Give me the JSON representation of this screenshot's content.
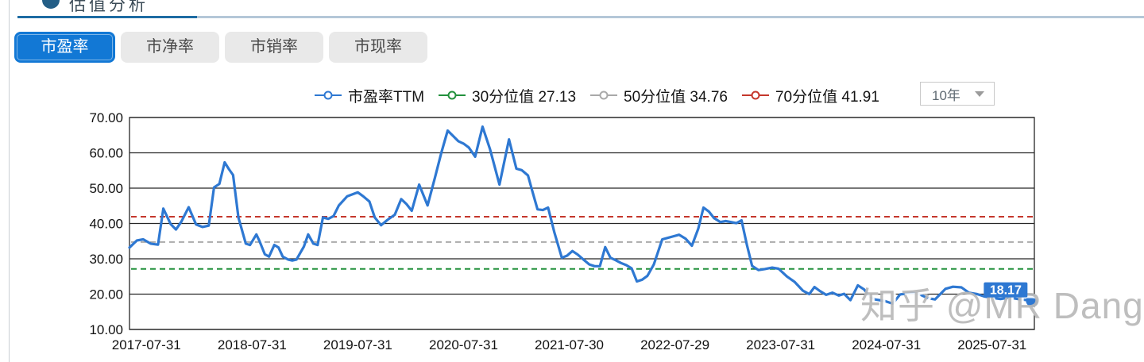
{
  "header": {
    "title": "估值分析"
  },
  "tabs": [
    {
      "label": "市盈率",
      "active": true
    },
    {
      "label": "市净率",
      "active": false
    },
    {
      "label": "市销率",
      "active": false
    },
    {
      "label": "市现率",
      "active": false
    }
  ],
  "legend": [
    {
      "label": "市盈率TTM",
      "color": "#2e78d2"
    },
    {
      "label": "30分位值 27.13",
      "color": "#23913d"
    },
    {
      "label": "50分位值 34.76",
      "color": "#a9a9a9"
    },
    {
      "label": "70分位值 41.91",
      "color": "#c5372c"
    }
  ],
  "period_select": {
    "value": "10年",
    "icon": "caret-down-icon"
  },
  "watermark": {
    "text": "知乎 @MR Dang"
  },
  "chart_data": {
    "type": "line",
    "title": "",
    "xlabel": "",
    "ylabel": "",
    "ylim": [
      10,
      70
    ],
    "y_ticks": [
      70,
      60,
      50,
      40,
      30,
      20,
      10
    ],
    "grid": true,
    "x_range": [
      2017.42,
      2025.98
    ],
    "x_ticks": {
      "labels": [
        "2017-07-31",
        "2018-07-31",
        "2019-07-31",
        "2020-07-31",
        "2021-07-30",
        "2022-07-29",
        "2023-07-31",
        "2024-07-31",
        "2025-07-31"
      ],
      "positions": [
        2017.58,
        2018.58,
        2019.58,
        2020.58,
        2021.58,
        2022.58,
        2023.58,
        2024.58,
        2025.58
      ]
    },
    "reference_lines": [
      {
        "name": "30分位值",
        "value": 27.13,
        "color": "#23913d"
      },
      {
        "name": "50分位值",
        "value": 34.76,
        "color": "#ababab"
      },
      {
        "name": "70分位值",
        "value": 41.91,
        "color": "#c5372c"
      }
    ],
    "last_value_label": "18.17",
    "series": [
      {
        "name": "市盈率TTM",
        "color": "#2e78d2",
        "points": [
          [
            2017.42,
            33.2
          ],
          [
            2017.49,
            35.2
          ],
          [
            2017.55,
            35.5
          ],
          [
            2017.62,
            34.3
          ],
          [
            2017.69,
            34.0
          ],
          [
            2017.74,
            44.2
          ],
          [
            2017.81,
            39.8
          ],
          [
            2017.86,
            38.3
          ],
          [
            2017.91,
            40.5
          ],
          [
            2017.98,
            44.6
          ],
          [
            2018.05,
            39.7
          ],
          [
            2018.11,
            39.0
          ],
          [
            2018.17,
            39.4
          ],
          [
            2018.22,
            50.2
          ],
          [
            2018.27,
            51.2
          ],
          [
            2018.32,
            57.3
          ],
          [
            2018.36,
            55.4
          ],
          [
            2018.4,
            53.7
          ],
          [
            2018.45,
            41.7
          ],
          [
            2018.52,
            34.3
          ],
          [
            2018.56,
            33.9
          ],
          [
            2018.62,
            36.9
          ],
          [
            2018.65,
            35.0
          ],
          [
            2018.7,
            31.3
          ],
          [
            2018.74,
            30.6
          ],
          [
            2018.79,
            33.9
          ],
          [
            2018.83,
            33.2
          ],
          [
            2018.87,
            30.6
          ],
          [
            2018.92,
            29.8
          ],
          [
            2018.96,
            29.5
          ],
          [
            2019.0,
            29.8
          ],
          [
            2019.07,
            33.5
          ],
          [
            2019.11,
            36.9
          ],
          [
            2019.16,
            34.3
          ],
          [
            2019.2,
            33.9
          ],
          [
            2019.25,
            41.7
          ],
          [
            2019.3,
            41.3
          ],
          [
            2019.35,
            42.1
          ],
          [
            2019.4,
            45.1
          ],
          [
            2019.48,
            47.7
          ],
          [
            2019.58,
            48.8
          ],
          [
            2019.63,
            47.7
          ],
          [
            2019.69,
            46.2
          ],
          [
            2019.74,
            41.7
          ],
          [
            2019.8,
            39.5
          ],
          [
            2019.86,
            41.0
          ],
          [
            2019.93,
            42.5
          ],
          [
            2019.99,
            46.9
          ],
          [
            2020.04,
            45.5
          ],
          [
            2020.09,
            43.6
          ],
          [
            2020.16,
            51.0
          ],
          [
            2020.24,
            45.1
          ],
          [
            2020.31,
            53.0
          ],
          [
            2020.37,
            60.0
          ],
          [
            2020.43,
            66.3
          ],
          [
            2020.48,
            64.8
          ],
          [
            2020.53,
            63.3
          ],
          [
            2020.58,
            62.6
          ],
          [
            2020.63,
            61.5
          ],
          [
            2020.69,
            58.9
          ],
          [
            2020.76,
            67.4
          ],
          [
            2020.83,
            61.1
          ],
          [
            2020.92,
            51.0
          ],
          [
            2021.01,
            63.8
          ],
          [
            2021.08,
            55.5
          ],
          [
            2021.13,
            55.1
          ],
          [
            2021.19,
            53.6
          ],
          [
            2021.23,
            49.2
          ],
          [
            2021.28,
            44.0
          ],
          [
            2021.33,
            43.8
          ],
          [
            2021.38,
            44.5
          ],
          [
            2021.44,
            37.4
          ],
          [
            2021.51,
            30.3
          ],
          [
            2021.56,
            30.9
          ],
          [
            2021.61,
            32.2
          ],
          [
            2021.66,
            31.2
          ],
          [
            2021.71,
            29.9
          ],
          [
            2021.77,
            28.4
          ],
          [
            2021.82,
            27.9
          ],
          [
            2021.87,
            27.9
          ],
          [
            2021.92,
            33.3
          ],
          [
            2021.97,
            30.3
          ],
          [
            2022.02,
            29.6
          ],
          [
            2022.07,
            28.8
          ],
          [
            2022.12,
            28.2
          ],
          [
            2022.17,
            27.3
          ],
          [
            2022.22,
            23.6
          ],
          [
            2022.27,
            24.1
          ],
          [
            2022.32,
            25.2
          ],
          [
            2022.38,
            28.4
          ],
          [
            2022.46,
            35.5
          ],
          [
            2022.51,
            35.9
          ],
          [
            2022.57,
            36.4
          ],
          [
            2022.62,
            36.8
          ],
          [
            2022.68,
            35.7
          ],
          [
            2022.74,
            33.7
          ],
          [
            2022.8,
            38.5
          ],
          [
            2022.85,
            44.5
          ],
          [
            2022.9,
            43.4
          ],
          [
            2022.95,
            41.5
          ],
          [
            2023.01,
            40.4
          ],
          [
            2023.06,
            40.7
          ],
          [
            2023.11,
            40.4
          ],
          [
            2023.16,
            40.1
          ],
          [
            2023.21,
            40.9
          ],
          [
            2023.26,
            34.0
          ],
          [
            2023.31,
            28.0
          ],
          [
            2023.37,
            26.8
          ],
          [
            2023.43,
            27.1
          ],
          [
            2023.5,
            27.5
          ],
          [
            2023.56,
            27.2
          ],
          [
            2023.64,
            25.0
          ],
          [
            2023.71,
            23.5
          ],
          [
            2023.79,
            21.0
          ],
          [
            2023.85,
            20.0
          ],
          [
            2023.9,
            22.0
          ],
          [
            2023.95,
            20.9
          ],
          [
            2024.01,
            19.8
          ],
          [
            2024.07,
            20.4
          ],
          [
            2024.13,
            19.6
          ],
          [
            2024.18,
            20.1
          ],
          [
            2024.24,
            18.3
          ],
          [
            2024.31,
            22.5
          ],
          [
            2024.37,
            21.3
          ],
          [
            2024.41,
            19.8
          ],
          [
            2024.47,
            18.5
          ],
          [
            2024.56,
            18.1
          ],
          [
            2024.64,
            17.3
          ],
          [
            2024.71,
            19.9
          ],
          [
            2024.82,
            20.4
          ],
          [
            2024.89,
            20.0
          ],
          [
            2024.97,
            18.9
          ],
          [
            2025.04,
            18.5
          ],
          [
            2025.14,
            21.5
          ],
          [
            2025.21,
            22.1
          ],
          [
            2025.29,
            21.9
          ],
          [
            2025.36,
            20.4
          ],
          [
            2025.44,
            20.0
          ],
          [
            2025.51,
            19.3
          ],
          [
            2025.59,
            18.9
          ],
          [
            2025.66,
            18.6
          ],
          [
            2025.74,
            19.0
          ],
          [
            2025.85,
            18.5
          ],
          [
            2025.96,
            18.17
          ]
        ]
      }
    ]
  }
}
